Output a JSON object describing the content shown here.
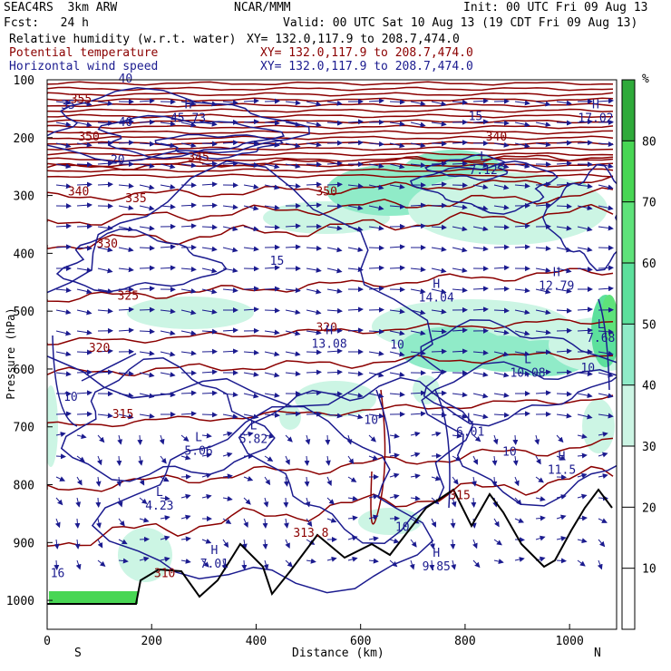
{
  "header": {
    "model": "SEAC4RS  3km ARW",
    "org": "NCAR/MMM",
    "init": "Init: 00 UTC Fri 09 Aug 13",
    "fcst": "Fcst:   24 h",
    "valid": "Valid: 00 UTC Sat 10 Aug 13 (19 CDT Fri 09 Aug 13)"
  },
  "legend": [
    {
      "name": "Relative humidity (w.r.t. water)",
      "xy": "XY= 132.0,117.9 to 208.7,474.0",
      "color": "#000000"
    },
    {
      "name": "Potential temperature",
      "xy": "XY= 132.0,117.9 to 208.7,474.0",
      "color": "#8b0000"
    },
    {
      "name": "Horizontal wind speed",
      "xy": "XY= 132.0,117.9 to 208.7,474.0",
      "color": "#1b1b8f"
    }
  ],
  "chart_data": {
    "type": "heatmap",
    "xlabel": "Distance (km)",
    "ylabel": "Pressure (hPa)",
    "x_end_labels": {
      "left": "S",
      "right": "N"
    },
    "xlim": [
      0,
      1090
    ],
    "ylim": [
      1050,
      100
    ],
    "x_ticks": [
      0,
      200,
      400,
      600,
      800,
      1000
    ],
    "y_ticks": [
      100,
      200,
      300,
      400,
      500,
      600,
      700,
      800,
      900,
      1000
    ],
    "colorbar": {
      "unit": "%",
      "ticks": [
        10,
        20,
        30,
        40,
        50,
        60,
        70,
        80
      ],
      "levels": [
        {
          "from": 30,
          "to": 40,
          "color": "#ccf5e4"
        },
        {
          "from": 40,
          "to": 50,
          "color": "#90ebc8"
        },
        {
          "from": 50,
          "to": 60,
          "color": "#5ce09c"
        },
        {
          "from": 60,
          "to": 70,
          "color": "#5ee27a"
        },
        {
          "from": 70,
          "to": 80,
          "color": "#48d654"
        },
        {
          "from": 80,
          "to": 90,
          "color": "#2faa3a"
        }
      ]
    },
    "theta_labels": [
      {
        "text": "355",
        "x": 65,
        "p": 140
      },
      {
        "text": "350",
        "x": 80,
        "p": 205
      },
      {
        "text": "345",
        "x": 290,
        "p": 240
      },
      {
        "text": "340",
        "x": 60,
        "p": 300
      },
      {
        "text": "335",
        "x": 170,
        "p": 312
      },
      {
        "text": "330",
        "x": 115,
        "p": 390
      },
      {
        "text": "325",
        "x": 155,
        "p": 480
      },
      {
        "text": "320",
        "x": 100,
        "p": 570
      },
      {
        "text": "315",
        "x": 145,
        "p": 685
      },
      {
        "text": "320",
        "x": 535,
        "p": 535
      },
      {
        "text": "340",
        "x": 860,
        "p": 205
      },
      {
        "text": "315",
        "x": 790,
        "p": 825
      },
      {
        "text": "313.8",
        "x": 505,
        "p": 890
      },
      {
        "text": "310",
        "x": 225,
        "p": 960
      },
      {
        "text": "350",
        "x": 535,
        "p": 300
      }
    ],
    "wind_labels": [
      {
        "text": "40",
        "x": 150,
        "p": 105
      },
      {
        "text": "35",
        "x": 40,
        "p": 150
      },
      {
        "text": "40",
        "x": 150,
        "p": 180
      },
      {
        "text": "20",
        "x": 135,
        "p": 245
      },
      {
        "text": "15",
        "x": 440,
        "p": 420
      },
      {
        "text": "15",
        "x": 820,
        "p": 170
      },
      {
        "text": "10",
        "x": 670,
        "p": 565
      },
      {
        "text": "10",
        "x": 45,
        "p": 655
      },
      {
        "text": "10",
        "x": 620,
        "p": 695
      },
      {
        "text": "10",
        "x": 885,
        "p": 750
      },
      {
        "text": "10",
        "x": 680,
        "p": 880
      },
      {
        "text": "10",
        "x": 1035,
        "p": 605
      },
      {
        "text": "16",
        "x": 20,
        "p": 960
      }
    ],
    "extrema": [
      {
        "kind": "H",
        "value": "45.73",
        "x": 270,
        "p": 170
      },
      {
        "kind": "L",
        "value": "7.12",
        "x": 835,
        "p": 260
      },
      {
        "kind": "H",
        "value": "17.02",
        "x": 1050,
        "p": 170
      },
      {
        "kind": "H",
        "value": "14.04",
        "x": 745,
        "p": 480
      },
      {
        "kind": "H",
        "value": "12.79",
        "x": 975,
        "p": 460
      },
      {
        "kind": "H",
        "value": "13.08",
        "x": 540,
        "p": 560
      },
      {
        "kind": "L",
        "value": "7.68",
        "x": 1060,
        "p": 550
      },
      {
        "kind": "L",
        "value": "10.08",
        "x": 920,
        "p": 610
      },
      {
        "kind": "L",
        "value": "5.06",
        "x": 290,
        "p": 745
      },
      {
        "kind": "L",
        "value": "5.82",
        "x": 395,
        "p": 725
      },
      {
        "kind": "L",
        "value": "6.01",
        "x": 810,
        "p": 712
      },
      {
        "kind": "L",
        "value": "4.23",
        "x": 215,
        "p": 840
      },
      {
        "kind": "H",
        "value": "7.01",
        "x": 320,
        "p": 940
      },
      {
        "kind": "H",
        "value": "11.5",
        "x": 985,
        "p": 778
      },
      {
        "kind": "H",
        "value": "9.85",
        "x": 745,
        "p": 945
      }
    ]
  }
}
